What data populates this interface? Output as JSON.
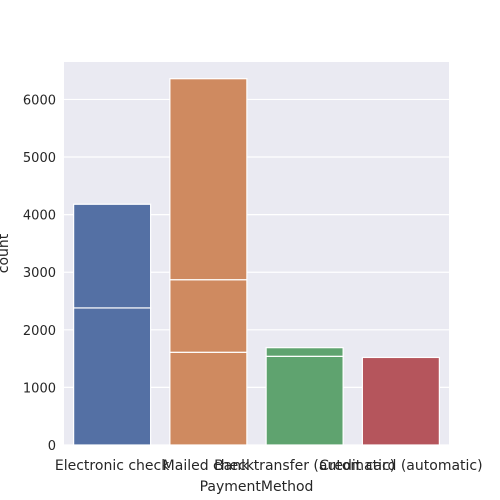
{
  "chart_data": {
    "type": "bar",
    "xlabel": "PaymentMethod",
    "ylabel": "count",
    "ylim": [
      0,
      6650
    ],
    "yticks": [
      0,
      1000,
      2000,
      3000,
      4000,
      5000,
      6000
    ],
    "grid": true,
    "categories": [
      "Electronic check",
      "Mailed check",
      "Bank transfer (automatic)",
      "Credit card (automatic)"
    ],
    "colors": [
      "#5470a4",
      "#cf8a60",
      "#5fa36f",
      "#b5555c"
    ],
    "stacked_segments": [
      {
        "category": "Electronic check",
        "boundaries": [
          0,
          2380,
          4180
        ]
      },
      {
        "category": "Mailed check",
        "boundaries": [
          0,
          1610,
          2870,
          6360
        ]
      },
      {
        "category": "Bank transfer (automatic)",
        "boundaries": [
          0,
          1540,
          1690
        ]
      },
      {
        "category": "Credit card (automatic)",
        "boundaries": [
          0,
          1520
        ]
      }
    ]
  },
  "background_color": "#eaeaf2",
  "grid_color": "#ffffff"
}
